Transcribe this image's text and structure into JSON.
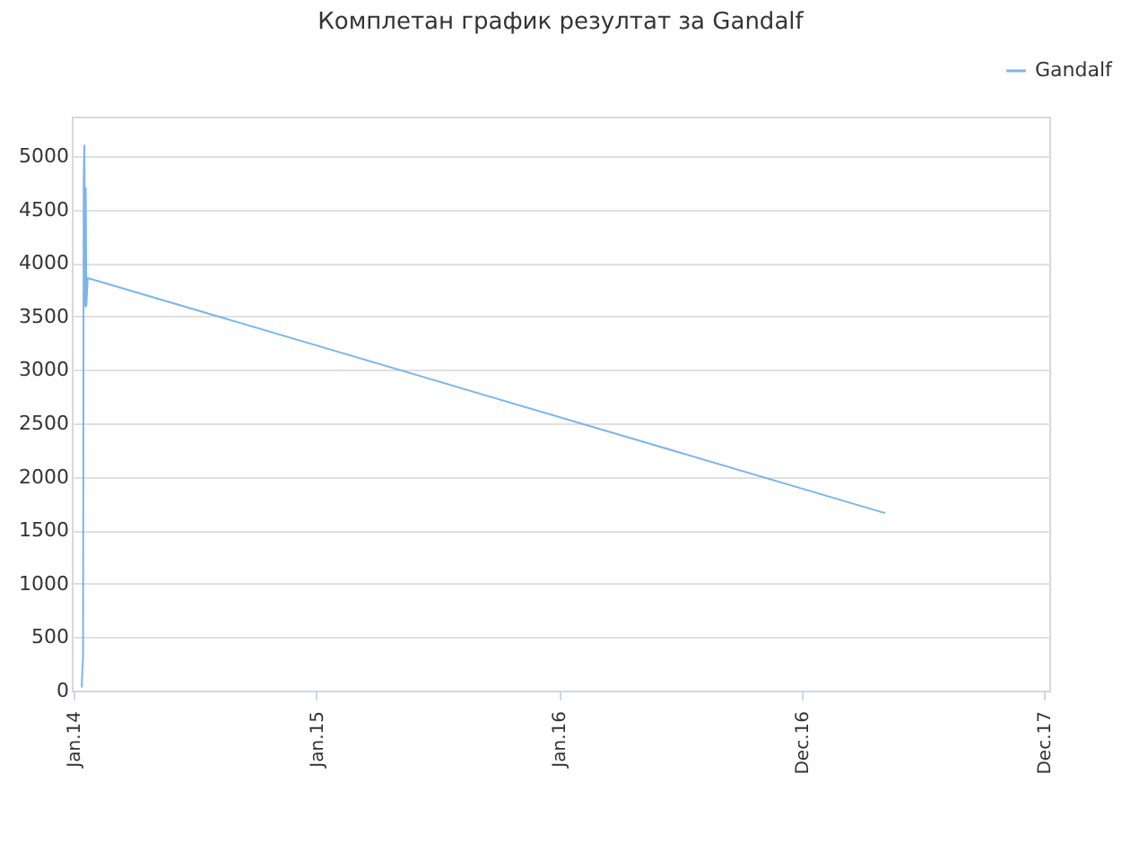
{
  "chart_data": {
    "type": "line",
    "title": "Комплетан график резултат за Gandalf",
    "x": [
      "2014-01-13",
      "2014-01-14",
      "2014-01-15",
      "2014-01-16",
      "2014-01-17",
      "2014-01-18",
      "2014-01-19",
      "2014-01-20",
      "2014-01-22",
      "2017-05-06"
    ],
    "series": [
      {
        "name": "Gandalf",
        "color": "#7cb5ec",
        "values": [
          30,
          200,
          300,
          4800,
          5100,
          3600,
          4700,
          3600,
          3860,
          1660
        ]
      }
    ],
    "xlim": [
      "2013-12-29",
      "2018-01-08"
    ],
    "xticks": [
      {
        "value": "2014-01-01",
        "label": "Jan.14"
      },
      {
        "value": "2015-01-01",
        "label": "Jan.15"
      },
      {
        "value": "2016-01-01",
        "label": "Jan.16"
      },
      {
        "value": "2016-12-31",
        "label": "Dec.16"
      },
      {
        "value": "2017-12-31",
        "label": "Dec.17"
      }
    ],
    "ylim": [
      0,
      5370
    ],
    "yticks": [
      0,
      500,
      1000,
      1500,
      2000,
      2500,
      3000,
      3500,
      4000,
      4500,
      5000
    ],
    "grid": "y",
    "legend": "top right",
    "marker": "none",
    "line_style": "solid"
  }
}
